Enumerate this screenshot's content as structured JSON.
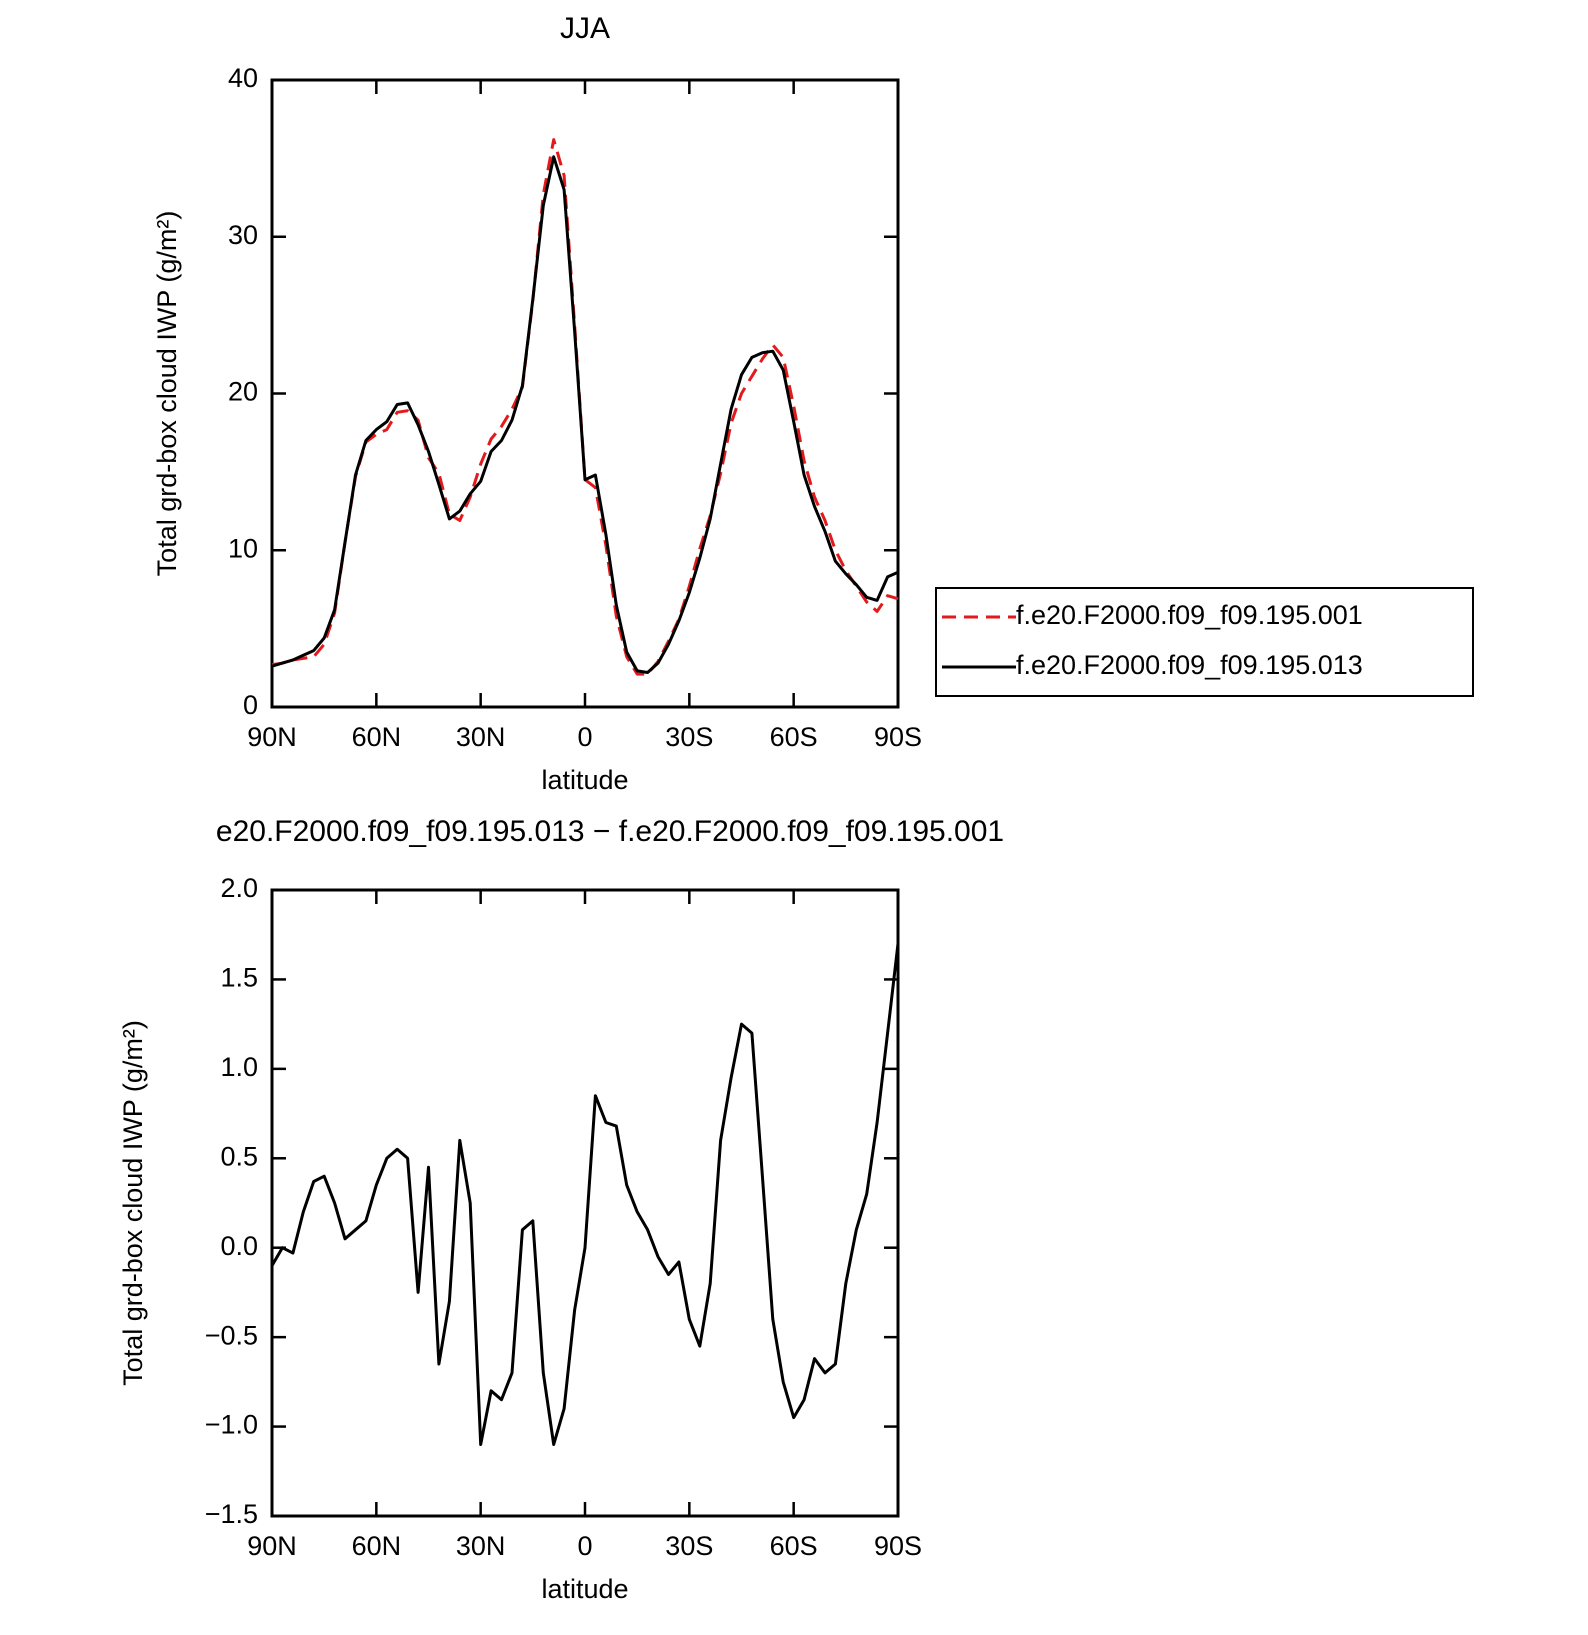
{
  "chart_data": [
    {
      "type": "line",
      "title": "JJA",
      "xlabel": "latitude",
      "ylabel": "Total grd-box cloud IWP (g/m²)",
      "x": [
        90,
        87,
        84,
        81,
        78,
        75,
        72,
        69,
        66,
        63,
        60,
        57,
        54,
        51,
        48,
        45,
        42,
        39,
        36,
        33,
        30,
        27,
        24,
        21,
        18,
        15,
        12,
        9,
        6,
        3,
        0,
        -3,
        -6,
        -9,
        -12,
        -15,
        -18,
        -21,
        -24,
        -27,
        -30,
        -33,
        -36,
        -39,
        -42,
        -45,
        -48,
        -51,
        -54,
        -57,
        -60,
        -63,
        -66,
        -69,
        -72,
        -75,
        -78,
        -81,
        -84,
        -87,
        -90
      ],
      "series": [
        {
          "name": "f.e20.F2000.f09_f09.195.001",
          "color": "#e31a1c",
          "linestyle": "dashed",
          "values": [
            2.7,
            2.8,
            3.0,
            3.1,
            3.2,
            4.0,
            6.0,
            10.5,
            14.7,
            16.9,
            17.4,
            17.7,
            18.8,
            18.9,
            18.3,
            15.9,
            14.9,
            12.3,
            11.9,
            13.4,
            15.5,
            17.1,
            17.9,
            19.0,
            20.4,
            25.9,
            32.7,
            36.2,
            33.9,
            24.4,
            14.5,
            14.0,
            10.3,
            5.8,
            3.2,
            2.1,
            2.1,
            2.9,
            4.2,
            5.6,
            7.7,
            10.1,
            12.2,
            14.9,
            18.1,
            20.0,
            21.1,
            22.2,
            23.1,
            22.3,
            19.2,
            15.7,
            13.4,
            11.9,
            10.0,
            8.7,
            7.7,
            6.7,
            6.1,
            7.1,
            6.9
          ]
        },
        {
          "name": "f.e20.F2000.f09_f09.195.013",
          "color": "#000000",
          "linestyle": "solid",
          "values": [
            2.6,
            2.8,
            3.0,
            3.3,
            3.6,
            4.4,
            6.2,
            10.5,
            14.8,
            17.0,
            17.7,
            18.2,
            19.3,
            19.4,
            18.0,
            16.3,
            14.2,
            12.0,
            12.5,
            13.6,
            14.4,
            16.3,
            17.0,
            18.3,
            20.5,
            26,
            32,
            35.1,
            33,
            24,
            14.5,
            14.8,
            11,
            6.5,
            3.5,
            2.3,
            2.2,
            2.8,
            4,
            5.5,
            7.3,
            9.5,
            12,
            15.5,
            19,
            21.2,
            22.3,
            22.6,
            22.7,
            21.5,
            18.2,
            14.8,
            12.8,
            11.2,
            9.3,
            8.5,
            7.8,
            7.0,
            6.8,
            8.3,
            8.6
          ]
        }
      ],
      "xlim": [
        90,
        -90
      ],
      "ylim": [
        0,
        40
      ],
      "yticks": [
        0,
        10,
        20,
        30,
        40
      ],
      "xticks": [
        {
          "value": 90,
          "label": "90N"
        },
        {
          "value": 60,
          "label": "60N"
        },
        {
          "value": 30,
          "label": "30N"
        },
        0,
        {
          "value": -30,
          "label": "30S"
        },
        {
          "value": -60,
          "label": "60S"
        },
        {
          "value": -90,
          "label": "90S"
        }
      ],
      "legend": "right"
    },
    {
      "type": "line",
      "title": "e20.F2000.f09_f09.195.013 − f.e20.F2000.f09_f09.195.001",
      "xlabel": "latitude",
      "ylabel": "Total grd-box cloud IWP (g/m²)",
      "x": [
        90,
        87,
        84,
        81,
        78,
        75,
        72,
        69,
        66,
        63,
        60,
        57,
        54,
        51,
        48,
        45,
        42,
        39,
        36,
        33,
        30,
        27,
        24,
        21,
        18,
        15,
        12,
        9,
        6,
        3,
        0,
        -3,
        -6,
        -9,
        -12,
        -15,
        -18,
        -21,
        -24,
        -27,
        -30,
        -33,
        -36,
        -39,
        -42,
        -45,
        -48,
        -51,
        -54,
        -57,
        -60,
        -63,
        -66,
        -69,
        -72,
        -75,
        -78,
        -81,
        -84,
        -87,
        -90
      ],
      "series": [
        {
          "color": "#000000",
          "linestyle": "solid",
          "values": [
            -0.1,
            0.0,
            -0.03,
            0.2,
            0.37,
            0.4,
            0.25,
            0.05,
            0.1,
            0.15,
            0.35,
            0.5,
            0.55,
            0.5,
            -0.25,
            0.45,
            -0.65,
            -0.3,
            0.6,
            0.25,
            -1.1,
            -0.8,
            -0.85,
            -0.7,
            0.1,
            0.15,
            -0.7,
            -1.1,
            -0.9,
            -0.35,
            0.0,
            0.85,
            0.7,
            0.68,
            0.35,
            0.2,
            0.1,
            -0.05,
            -0.15,
            -0.08,
            -0.4,
            -0.55,
            -0.2,
            0.6,
            0.95,
            1.25,
            1.2,
            0.4,
            -0.4,
            -0.75,
            -0.95,
            -0.85,
            -0.62,
            -0.7,
            -0.65,
            -0.2,
            0.1,
            0.3,
            0.7,
            1.2,
            1.7
          ]
        }
      ],
      "xlim": [
        90,
        -90
      ],
      "ylim": [
        -1.5,
        2.0
      ],
      "yticks": [
        {
          "value": -1.5,
          "label": "−1.5"
        },
        {
          "value": -1.0,
          "label": "−1.0"
        },
        {
          "value": -0.5,
          "label": "−0.5"
        },
        {
          "value": 0,
          "label": "0.0"
        },
        {
          "value": 0.5,
          "label": "0.5"
        },
        {
          "value": 1.0,
          "label": "1.0"
        },
        {
          "value": 1.5,
          "label": "1.5"
        },
        {
          "value": 2.0,
          "label": "2.0"
        }
      ],
      "xticks": [
        {
          "value": 90,
          "label": "90N"
        },
        {
          "value": 60,
          "label": "60N"
        },
        {
          "value": 30,
          "label": "30N"
        },
        0,
        {
          "value": -30,
          "label": "30S"
        },
        {
          "value": -60,
          "label": "60S"
        },
        {
          "value": -90,
          "label": "90S"
        }
      ]
    }
  ]
}
